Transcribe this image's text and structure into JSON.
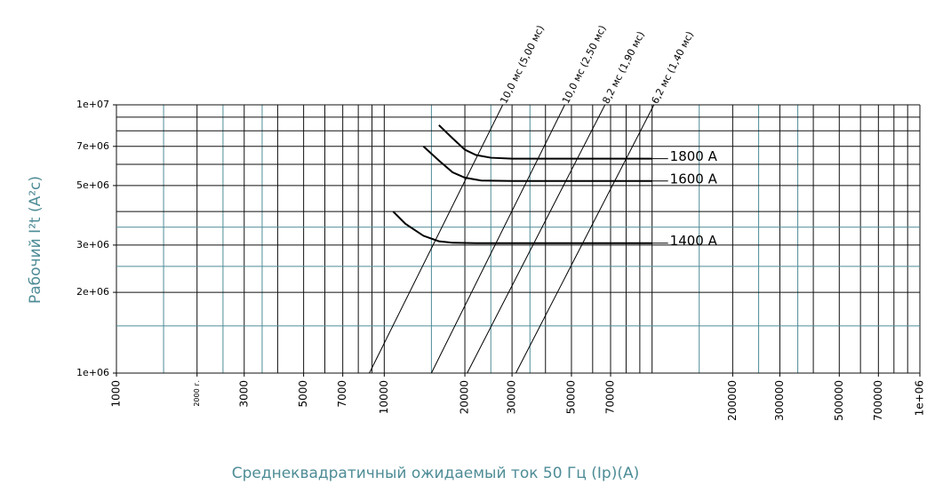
{
  "chart_data": {
    "type": "line",
    "xscale": "log",
    "yscale": "log",
    "xlabel": "Среднеквадратичный ожидаемый ток 50 Гц (Ip)(A)",
    "ylabel": "Рабочий I²t (A²c)",
    "xlim": [
      1000,
      1000000
    ],
    "ylim": [
      1000000,
      10000000
    ],
    "xticks": [
      1000,
      {
        "value": 2000,
        "label": "2000 г."
      },
      3000,
      5000,
      7000,
      10000,
      20000,
      30000,
      50000,
      70000,
      200000,
      300000,
      500000,
      700000,
      {
        "value": 1000000,
        "label": "1e+06"
      }
    ],
    "yticks": [
      {
        "value": 1000000,
        "label": "1e+06"
      },
      {
        "value": 2000000,
        "label": "2e+06"
      },
      {
        "value": 3000000,
        "label": "3e+06"
      },
      {
        "value": 5000000,
        "label": "5e+06"
      },
      {
        "value": 7000000,
        "label": "7e+06"
      },
      {
        "value": 10000000,
        "label": "1e+07"
      }
    ],
    "grid_color": "#111111",
    "minor_grid_color": "#4e8c96",
    "xgrid_major": [
      1000,
      2000,
      3000,
      4000,
      5000,
      6000,
      7000,
      8000,
      9000,
      10000,
      20000,
      30000,
      40000,
      50000,
      60000,
      70000,
      80000,
      90000,
      100000,
      200000,
      300000,
      400000,
      500000,
      600000,
      700000,
      800000,
      900000,
      1000000
    ],
    "xgrid_minor": [
      1500,
      2500,
      3500,
      15000,
      25000,
      35000,
      150000,
      250000,
      350000
    ],
    "ygrid_major": [
      1000000,
      2000000,
      3000000,
      4000000,
      5000000,
      6000000,
      7000000,
      8000000,
      9000000,
      10000000
    ],
    "ygrid_minor": [
      1500000,
      2500000,
      3500000
    ],
    "series": [
      {
        "name": "1800 A",
        "color": "#000000",
        "x": [
          16000,
          18000,
          20000,
          22000,
          25000,
          30000,
          50000,
          100000
        ],
        "values": [
          8400000,
          7500000,
          6800000,
          6500000,
          6350000,
          6300000,
          6300000,
          6300000
        ]
      },
      {
        "name": "1600 A",
        "color": "#000000",
        "x": [
          14000,
          16000,
          18000,
          20000,
          23000,
          30000,
          100000
        ],
        "values": [
          7000000,
          6200000,
          5600000,
          5350000,
          5220000,
          5200000,
          5200000
        ]
      },
      {
        "name": "1400 A",
        "color": "#000000",
        "x": [
          10800,
          12000,
          14000,
          16000,
          18000,
          22000,
          100000
        ],
        "values": [
          4000000,
          3600000,
          3250000,
          3100000,
          3060000,
          3050000,
          3050000
        ]
      }
    ],
    "reference_lines": [
      {
        "name": "10,0 мс (5,00 мс)",
        "x": [
          8800,
          27700
        ],
        "values": [
          1000000,
          10000000
        ]
      },
      {
        "name": "10,0 мс (2,50 мс)",
        "x": [
          15000,
          47200
        ],
        "values": [
          1000000,
          10000000
        ]
      },
      {
        "name": "8,2 мс (1,90 мс)",
        "x": [
          20400,
          66700
        ],
        "values": [
          1000000,
          10000000
        ]
      },
      {
        "name": "6,2 мс (1,40 мс)",
        "x": [
          31000,
          101600
        ],
        "values": [
          1000000,
          10000000
        ]
      }
    ]
  }
}
